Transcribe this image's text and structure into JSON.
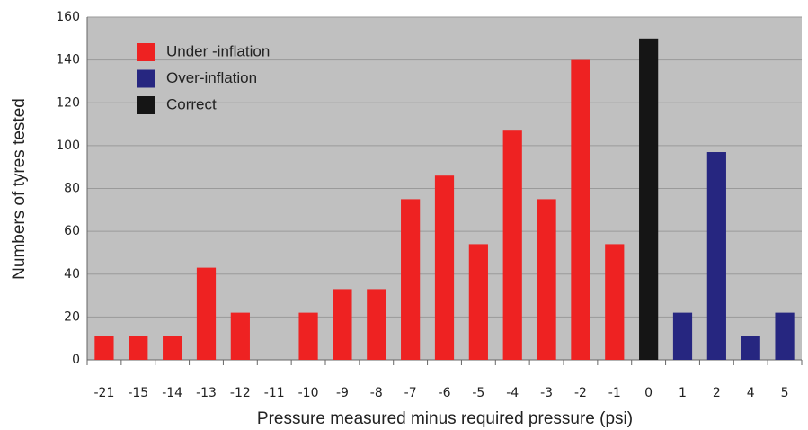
{
  "chart_data": {
    "type": "bar",
    "x_label": "Pressure measured minus required pressure (psi)",
    "y_label": "Numbers of tyres tested",
    "categories": [
      "-21",
      "-15",
      "-14",
      "-13",
      "-12",
      "-11",
      "-10",
      "-9",
      "-8",
      "-7",
      "-6",
      "-5",
      "-4",
      "-3",
      "-2",
      "-1",
      "0",
      "1",
      "2",
      "4",
      "5"
    ],
    "series": [
      {
        "name": "Under -inflation",
        "color": "#ee2222",
        "values": [
          11,
          11,
          11,
          43,
          22,
          0,
          22,
          33,
          33,
          75,
          86,
          54,
          107,
          75,
          140,
          54,
          null,
          null,
          null,
          null,
          null
        ]
      },
      {
        "name": "Over-inflation",
        "color": "#262680",
        "values": [
          null,
          null,
          null,
          null,
          null,
          null,
          null,
          null,
          null,
          null,
          null,
          null,
          null,
          null,
          null,
          null,
          null,
          22,
          97,
          11,
          22
        ]
      },
      {
        "name": "Correct",
        "color": "#151515",
        "values": [
          null,
          null,
          null,
          null,
          null,
          null,
          null,
          null,
          null,
          null,
          null,
          null,
          null,
          null,
          null,
          null,
          150,
          null,
          null,
          null,
          null
        ]
      }
    ],
    "ylim": [
      0,
      160
    ],
    "yticks": [
      0,
      20,
      40,
      60,
      80,
      100,
      120,
      140,
      160
    ],
    "grid": true,
    "legend": "upper left"
  }
}
